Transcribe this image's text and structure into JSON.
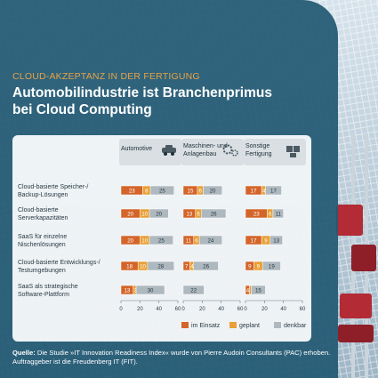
{
  "header": {
    "kicker": "CLOUD-AKZEPTANZ IN DER FERTIGUNG",
    "title_line1": "Automobilindustrie ist Branchenprimus",
    "title_line2": "bei Cloud Computing"
  },
  "chart_data": {
    "type": "bar",
    "stacked": true,
    "orientation": "horizontal",
    "groups": [
      {
        "label": "Automotive",
        "icon": "car-icon"
      },
      {
        "label": "Maschinen- und Anlagenbau",
        "line1": "Maschinen- und",
        "line2": "Anlagenbau",
        "icon": "gears-icon"
      },
      {
        "label": "Sonstige Fertigung",
        "line1": "Sonstige",
        "line2": "Fertigung",
        "icon": "box-icon"
      }
    ],
    "categories": [
      {
        "line1": "Cloud-basierte Speicher-/",
        "line2": "Backup-Lösungen"
      },
      {
        "line1": "Cloud-basierte",
        "line2": "Serverkapazitäten"
      },
      {
        "line1": "SaaS für einzelne",
        "line2": "Nischenlösungen"
      },
      {
        "line1": "Cloud-basierte Entwicklungs-/",
        "line2": "Testumgebungen"
      },
      {
        "line1": "SaaS als strategische",
        "line2": "Software-Plattform"
      }
    ],
    "series": [
      {
        "name": "im Einsatz",
        "color": "#d4652a"
      },
      {
        "name": "geplant",
        "color": "#e8a035"
      },
      {
        "name": "denkbar",
        "color": "#aeb8bf"
      }
    ],
    "values": [
      [
        [
          23,
          8,
          25
        ],
        [
          15,
          6,
          20
        ],
        [
          17,
          4,
          17
        ]
      ],
      [
        [
          20,
          10,
          20
        ],
        [
          13,
          6,
          26
        ],
        [
          23,
          6,
          11
        ]
      ],
      [
        [
          20,
          10,
          25
        ],
        [
          11,
          6,
          24
        ],
        [
          17,
          9,
          13
        ]
      ],
      [
        [
          18,
          10,
          28
        ],
        [
          7,
          4,
          26
        ],
        [
          9,
          9,
          19
        ]
      ],
      [
        [
          13,
          3,
          30
        ],
        [
          0,
          0,
          22
        ],
        [
          4,
          2,
          15
        ]
      ]
    ],
    "value_labels": [
      [
        [
          "23",
          "8",
          "25"
        ],
        [
          "15",
          "6",
          "20"
        ],
        [
          "17",
          "4",
          "17"
        ]
      ],
      [
        [
          "20",
          "10",
          "20"
        ],
        [
          "13",
          "6",
          "26"
        ],
        [
          "23",
          "6",
          "11"
        ]
      ],
      [
        [
          "20",
          "10",
          "25"
        ],
        [
          "11",
          "6",
          "24"
        ],
        [
          "17",
          "9",
          "13"
        ]
      ],
      [
        [
          "18",
          "10",
          "28"
        ],
        [
          "7",
          "4",
          "26"
        ],
        [
          "9",
          "9",
          "19"
        ]
      ],
      [
        [
          "13",
          "3",
          "30"
        ],
        [
          "",
          "",
          "22"
        ],
        [
          "4",
          "",
          "15"
        ]
      ]
    ],
    "xlim": [
      0,
      60
    ],
    "xticks": [
      "0",
      "20",
      "40",
      "60"
    ],
    "legend_position": "bottom-right"
  },
  "footer": {
    "source_label": "Quelle:",
    "text": "Die Studie »IT Innovation Readiness Index« wurde von Pierre Audoin Consultants (PAC) erhoben. Auftraggeber ist die Freudenberg IT (FIT)."
  }
}
